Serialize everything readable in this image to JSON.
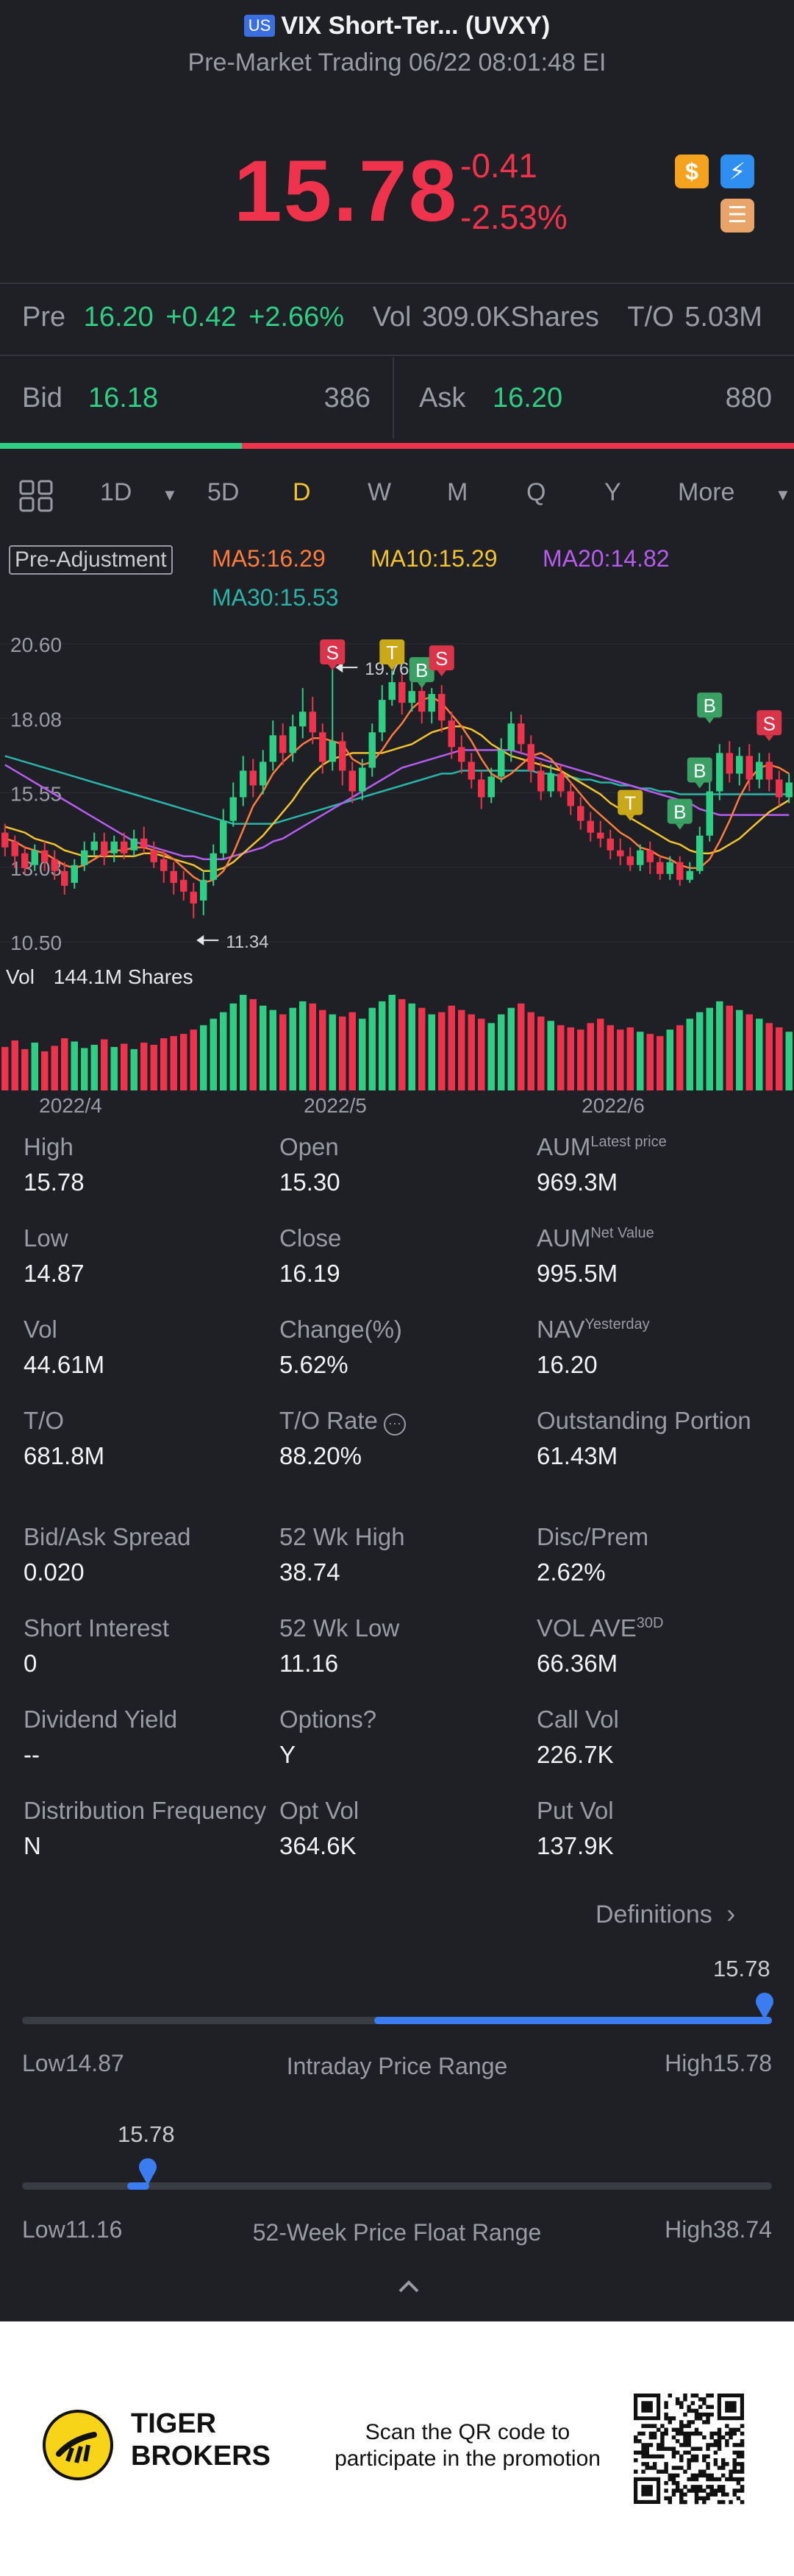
{
  "header": {
    "market_badge": "US",
    "title": "VIX Short-Ter... (UVXY)",
    "subtitle": "Pre-Market Trading 06/22 08:01:48 EI"
  },
  "quote": {
    "price": "15.78",
    "change": "-0.41",
    "change_pct": "-2.53%",
    "icons": [
      "dollar-icon",
      "lightning-icon",
      "stack-icon"
    ]
  },
  "pre": {
    "label": "Pre",
    "price": "16.20",
    "change": "+0.42",
    "change_pct": "+2.66%",
    "vol_label": "Vol",
    "vol_value": "309.0KShares",
    "to_label": "T/O",
    "to_value": "5.03M"
  },
  "bidask": {
    "bid_label": "Bid",
    "bid_price": "16.18",
    "bid_size": "386",
    "ask_label": "Ask",
    "ask_price": "16.20",
    "ask_size": "880",
    "bid_share": 0.305
  },
  "chart_tabs": [
    "1D",
    "5D",
    "D",
    "W",
    "M",
    "Q",
    "Y",
    "More"
  ],
  "active_tab": "D",
  "adjustment_label": "Pre-Adjustment",
  "ma": {
    "ma5": "MA5:16.29",
    "ma10": "MA10:15.29",
    "ma20": "MA20:14.82",
    "ma30": "MA30:15.53"
  },
  "colors": {
    "up": "#2ecf84",
    "down": "#f0334c",
    "ma5": "#ff7a3d",
    "ma10": "#f2c230",
    "ma20": "#b65cf0",
    "ma30": "#2ab3a6",
    "accent": "#3b7cf0",
    "background": "#1f2025"
  },
  "chart_data": {
    "type": "candlestick",
    "y_ticks": [
      "20.60",
      "18.08",
      "15.55",
      "13.03",
      "10.50"
    ],
    "ylim": [
      10.5,
      20.6
    ],
    "x_ticks": [
      "2022/4",
      "2022/5",
      "2022/6"
    ],
    "annotations": {
      "high": "19.76",
      "low": "11.34"
    },
    "markers": [
      {
        "label": "S",
        "kind": "sell",
        "index": 33,
        "price": 20.0
      },
      {
        "label": "T",
        "kind": "trade",
        "index": 39,
        "price": 20.0
      },
      {
        "label": "B",
        "kind": "buy",
        "index": 42,
        "price": 19.4
      },
      {
        "label": "S",
        "kind": "sell",
        "index": 44,
        "price": 19.8
      },
      {
        "label": "T",
        "kind": "trade",
        "index": 63,
        "price": 14.9
      },
      {
        "label": "B",
        "kind": "buy",
        "index": 68,
        "price": 14.6
      },
      {
        "label": "B",
        "kind": "buy",
        "index": 70,
        "price": 16.0
      },
      {
        "label": "B",
        "kind": "buy",
        "index": 71,
        "price": 18.2
      },
      {
        "label": "S",
        "kind": "sell",
        "index": 77,
        "price": 17.6
      }
    ],
    "candles": [
      [
        14.2,
        13.7,
        14.5,
        13.4
      ],
      [
        13.9,
        13.4,
        14.1,
        13.0
      ],
      [
        13.5,
        13.0,
        13.7,
        12.8
      ],
      [
        13.1,
        13.6,
        13.8,
        12.9
      ],
      [
        13.6,
        13.2,
        13.9,
        12.9
      ],
      [
        13.3,
        12.9,
        13.6,
        12.6
      ],
      [
        12.9,
        12.4,
        13.2,
        12.1
      ],
      [
        12.5,
        13.1,
        13.3,
        12.3
      ],
      [
        13.1,
        13.6,
        13.9,
        12.9
      ],
      [
        13.6,
        13.9,
        14.2,
        13.4
      ],
      [
        13.9,
        13.4,
        14.2,
        13.1
      ],
      [
        13.5,
        13.9,
        14.1,
        13.2
      ],
      [
        13.9,
        13.5,
        14.2,
        13.3
      ],
      [
        13.6,
        14.0,
        14.3,
        13.4
      ],
      [
        14.0,
        13.7,
        14.4,
        13.5
      ],
      [
        13.6,
        13.2,
        13.9,
        13.0
      ],
      [
        13.3,
        12.9,
        13.6,
        12.5
      ],
      [
        12.9,
        12.5,
        13.2,
        12.1
      ],
      [
        12.6,
        12.2,
        12.9,
        11.9
      ],
      [
        12.2,
        11.8,
        12.5,
        11.3
      ],
      [
        11.9,
        12.6,
        12.9,
        11.4
      ],
      [
        12.6,
        13.5,
        13.8,
        12.4
      ],
      [
        13.5,
        14.6,
        15.0,
        13.3
      ],
      [
        14.6,
        15.4,
        15.9,
        14.4
      ],
      [
        15.4,
        16.3,
        16.8,
        15.1
      ],
      [
        16.3,
        15.8,
        16.7,
        15.4
      ],
      [
        15.8,
        16.6,
        17.0,
        15.5
      ],
      [
        16.6,
        17.5,
        18.0,
        16.3
      ],
      [
        17.5,
        16.9,
        17.9,
        16.5
      ],
      [
        16.9,
        17.8,
        18.2,
        16.6
      ],
      [
        17.8,
        18.3,
        19.1,
        17.4
      ],
      [
        18.3,
        17.6,
        18.8,
        17.2
      ],
      [
        17.6,
        16.6,
        17.9,
        16.2
      ],
      [
        16.6,
        17.3,
        19.8,
        16.3
      ],
      [
        17.3,
        16.3,
        17.6,
        15.8
      ],
      [
        16.3,
        15.6,
        16.6,
        15.2
      ],
      [
        15.6,
        16.4,
        16.7,
        15.3
      ],
      [
        16.4,
        17.6,
        17.9,
        16.1
      ],
      [
        17.6,
        18.7,
        19.2,
        17.3
      ],
      [
        18.7,
        19.3,
        19.7,
        18.5
      ],
      [
        19.3,
        18.6,
        19.6,
        18.2
      ],
      [
        18.6,
        19.0,
        19.3,
        18.3
      ],
      [
        19.0,
        18.3,
        19.3,
        17.9
      ],
      [
        18.3,
        18.9,
        19.1,
        17.9
      ],
      [
        18.9,
        18.0,
        19.2,
        17.6
      ],
      [
        18.0,
        17.1,
        18.3,
        16.7
      ],
      [
        17.1,
        16.6,
        17.5,
        16.2
      ],
      [
        16.6,
        16.0,
        16.9,
        15.7
      ],
      [
        16.0,
        15.4,
        16.3,
        15.0
      ],
      [
        15.4,
        16.1,
        16.4,
        15.2
      ],
      [
        16.1,
        17.0,
        17.4,
        15.9
      ],
      [
        17.0,
        17.9,
        18.3,
        16.6
      ],
      [
        17.9,
        17.2,
        18.2,
        16.9
      ],
      [
        17.2,
        16.3,
        17.5,
        15.9
      ],
      [
        16.3,
        15.6,
        16.6,
        15.3
      ],
      [
        15.6,
        16.2,
        16.5,
        15.4
      ],
      [
        16.2,
        15.6,
        16.5,
        15.4
      ],
      [
        15.6,
        15.1,
        15.9,
        14.8
      ],
      [
        15.1,
        14.6,
        15.4,
        14.3
      ],
      [
        14.6,
        14.2,
        14.9,
        13.9
      ],
      [
        14.2,
        14.0,
        14.6,
        13.7
      ],
      [
        14.0,
        13.6,
        14.3,
        13.3
      ],
      [
        13.6,
        13.4,
        14.0,
        13.1
      ],
      [
        13.4,
        13.1,
        13.7,
        12.9
      ],
      [
        13.1,
        13.6,
        13.8,
        12.9
      ],
      [
        13.6,
        13.2,
        13.9,
        12.8
      ],
      [
        13.2,
        12.8,
        13.4,
        12.6
      ],
      [
        12.8,
        13.2,
        13.4,
        12.6
      ],
      [
        13.2,
        12.6,
        13.4,
        12.4
      ],
      [
        12.6,
        12.9,
        13.2,
        12.5
      ],
      [
        12.9,
        14.1,
        14.4,
        12.8
      ],
      [
        14.1,
        15.6,
        16.0,
        13.9
      ],
      [
        15.6,
        16.9,
        17.2,
        15.3
      ],
      [
        16.9,
        16.2,
        17.3,
        15.9
      ],
      [
        16.2,
        16.8,
        17.1,
        15.8
      ],
      [
        16.8,
        16.0,
        17.2,
        15.6
      ],
      [
        16.0,
        16.6,
        16.9,
        15.7
      ],
      [
        16.6,
        16.0,
        16.9,
        15.6
      ],
      [
        16.0,
        15.4,
        16.3,
        15.1
      ],
      [
        15.4,
        15.9,
        16.2,
        15.2
      ]
    ],
    "ma_lines": {
      "ma5": [
        14.0,
        13.9,
        13.7,
        13.6,
        13.5,
        13.3,
        13.1,
        13.0,
        13.1,
        13.3,
        13.5,
        13.6,
        13.6,
        13.7,
        13.7,
        13.6,
        13.5,
        13.3,
        13.0,
        12.7,
        12.5,
        12.6,
        12.9,
        13.5,
        14.3,
        15.1,
        15.6,
        16.2,
        16.6,
        16.9,
        17.2,
        17.4,
        17.4,
        17.3,
        17.2,
        16.7,
        16.5,
        16.6,
        17.0,
        17.5,
        17.9,
        18.4,
        18.7,
        18.8,
        18.6,
        18.2,
        17.8,
        17.3,
        16.7,
        16.2,
        16.0,
        16.2,
        16.5,
        16.8,
        16.9,
        16.7,
        16.3,
        15.9,
        15.5,
        15.1,
        14.8,
        14.5,
        14.2,
        14.0,
        13.7,
        13.6,
        13.4,
        13.3,
        13.1,
        13.0,
        13.0,
        13.3,
        13.9,
        14.6,
        15.4,
        16.0,
        16.4,
        16.5,
        16.4,
        16.2
      ],
      "ma10": [
        14.4,
        14.3,
        14.2,
        14.0,
        13.9,
        13.8,
        13.6,
        13.5,
        13.4,
        13.4,
        13.4,
        13.4,
        13.4,
        13.4,
        13.5,
        13.5,
        13.4,
        13.3,
        13.2,
        13.1,
        12.9,
        12.9,
        13.0,
        13.2,
        13.5,
        13.8,
        14.1,
        14.5,
        14.9,
        15.3,
        15.8,
        16.2,
        16.5,
        16.7,
        16.8,
        16.9,
        16.9,
        16.9,
        16.9,
        17.0,
        17.1,
        17.2,
        17.4,
        17.6,
        17.7,
        17.8,
        17.8,
        17.7,
        17.5,
        17.2,
        17.0,
        16.8,
        16.7,
        16.6,
        16.5,
        16.4,
        16.3,
        16.1,
        15.9,
        15.7,
        15.5,
        15.2,
        15.0,
        14.7,
        14.5,
        14.3,
        14.1,
        13.9,
        13.8,
        13.6,
        13.5,
        13.5,
        13.6,
        13.8,
        14.0,
        14.3,
        14.6,
        14.9,
        15.1,
        15.3
      ],
      "ma20": [
        16.5,
        16.3,
        16.1,
        15.9,
        15.7,
        15.5,
        15.3,
        15.1,
        14.9,
        14.7,
        14.5,
        14.3,
        14.1,
        13.9,
        13.8,
        13.7,
        13.6,
        13.5,
        13.4,
        13.4,
        13.3,
        13.3,
        13.3,
        13.4,
        13.5,
        13.6,
        13.7,
        13.9,
        14.0,
        14.2,
        14.4,
        14.6,
        14.8,
        15.0,
        15.2,
        15.4,
        15.6,
        15.8,
        16.0,
        16.2,
        16.4,
        16.5,
        16.6,
        16.7,
        16.8,
        16.9,
        17.0,
        17.0,
        17.0,
        17.0,
        17.0,
        17.0,
        16.9,
        16.8,
        16.7,
        16.6,
        16.5,
        16.4,
        16.3,
        16.2,
        16.1,
        16.0,
        15.9,
        15.8,
        15.7,
        15.6,
        15.5,
        15.4,
        15.3,
        15.2,
        15.0,
        14.9,
        14.8,
        14.8,
        14.8,
        14.8,
        14.8,
        14.8,
        14.8,
        14.8
      ],
      "ma30": [
        16.8,
        16.7,
        16.6,
        16.5,
        16.4,
        16.3,
        16.2,
        16.1,
        16.0,
        15.9,
        15.8,
        15.7,
        15.6,
        15.5,
        15.4,
        15.3,
        15.2,
        15.1,
        15.0,
        14.9,
        14.8,
        14.7,
        14.6,
        14.5,
        14.5,
        14.5,
        14.5,
        14.5,
        14.6,
        14.7,
        14.8,
        14.9,
        15.0,
        15.1,
        15.2,
        15.3,
        15.4,
        15.5,
        15.6,
        15.7,
        15.8,
        15.9,
        16.0,
        16.1,
        16.2,
        16.2,
        16.3,
        16.3,
        16.3,
        16.3,
        16.3,
        16.3,
        16.3,
        16.3,
        16.2,
        16.2,
        16.1,
        16.1,
        16.0,
        16.0,
        15.9,
        15.9,
        15.8,
        15.8,
        15.7,
        15.7,
        15.6,
        15.6,
        15.5,
        15.5,
        15.5,
        15.5,
        15.5,
        15.5,
        15.5,
        15.5,
        15.5,
        15.5,
        15.5,
        15.5
      ]
    },
    "volume": {
      "label": "Vol",
      "value": "144.1M Shares",
      "bars": [
        40,
        46,
        38,
        44,
        36,
        41,
        48,
        45,
        39,
        42,
        47,
        40,
        43,
        38,
        44,
        42,
        48,
        50,
        52,
        56,
        60,
        66,
        72,
        80,
        88,
        84,
        78,
        74,
        70,
        76,
        82,
        80,
        74,
        70,
        68,
        72,
        66,
        76,
        82,
        88,
        84,
        80,
        76,
        70,
        72,
        78,
        74,
        70,
        66,
        62,
        70,
        76,
        80,
        72,
        68,
        64,
        60,
        58,
        56,
        62,
        66,
        60,
        56,
        58,
        54,
        52,
        50,
        56,
        60,
        66,
        72,
        76,
        82,
        78,
        74,
        70,
        66,
        62,
        58,
        54
      ]
    }
  },
  "stats": [
    {
      "label": "High",
      "value": "15.78"
    },
    {
      "label": "Open",
      "value": "15.30"
    },
    {
      "label": "AUM",
      "sup": "Latest price",
      "value": "969.3M"
    },
    {
      "label": "Low",
      "value": "14.87"
    },
    {
      "label": "Close",
      "value": "16.19"
    },
    {
      "label": "AUM",
      "sup": "Net Value",
      "value": "995.5M"
    },
    {
      "label": "Vol",
      "value": "44.61M"
    },
    {
      "label": "Change(%)",
      "value": "5.62%"
    },
    {
      "label": "NAV",
      "sup": "Yesterday",
      "value": "16.20"
    },
    {
      "label": "T/O",
      "value": "681.8M"
    },
    {
      "label": "T/O Rate",
      "info_icon": true,
      "value": "88.20%"
    },
    {
      "label": "Outstanding Portion",
      "value": "61.43M"
    },
    {
      "label": "Bid/Ask Spread",
      "value": "0.020"
    },
    {
      "label": "52 Wk High",
      "value": "38.74"
    },
    {
      "label": "Disc/Prem",
      "value": "2.62%"
    },
    {
      "label": "Short Interest",
      "value": "0"
    },
    {
      "label": "52 Wk Low",
      "value": "11.16"
    },
    {
      "label": "VOL AVE",
      "sup": "30D",
      "value": "66.36M"
    },
    {
      "label": "Dividend Yield",
      "value": "--"
    },
    {
      "label": "Options?",
      "value": "Y"
    },
    {
      "label": "Call Vol",
      "value": "226.7K"
    },
    {
      "label": "Distribution Frequency",
      "value": "N"
    },
    {
      "label": "Opt Vol",
      "value": "364.6K"
    },
    {
      "label": "Put Vol",
      "value": "137.9K"
    }
  ],
  "definitions_label": "Definitions",
  "intraday_range": {
    "label": "Intraday Price Range",
    "low_label": "Low14.87",
    "high_label": "High15.78",
    "current": "15.78",
    "low": 14.87,
    "high": 15.78,
    "fill_start_fraction": 0.47,
    "marker_fraction": 1.0
  },
  "week52_range": {
    "label": "52-Week Price Float Range",
    "low_label": "Low11.16",
    "high_label": "High38.74",
    "current": "15.78",
    "low": 11.16,
    "high": 38.74,
    "marker_fraction": 0.168
  },
  "footer": {
    "brand_line1": "TIGER",
    "brand_line2": "BROKERS",
    "promo_line1": "Scan the QR code to",
    "promo_line2": "participate in the promotion"
  }
}
